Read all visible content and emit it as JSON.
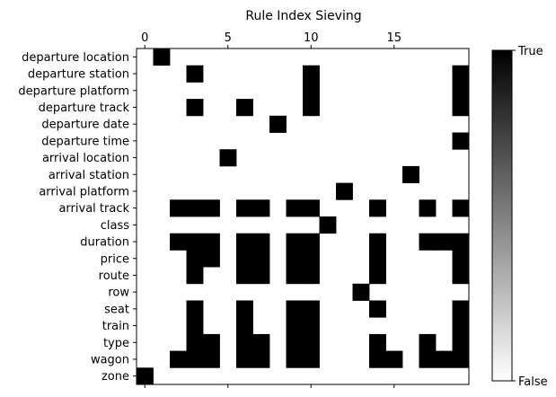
{
  "chart_data": {
    "type": "heatmap",
    "title": "Rule Index Sieving",
    "x_ticks": [
      0,
      5,
      10,
      15
    ],
    "x_range": [
      0,
      19
    ],
    "rows": [
      "departure location",
      "departure station",
      "departure platform",
      "departure track",
      "departure date",
      "departure time",
      "arrival location",
      "arrival station",
      "arrival platform",
      "arrival track",
      "class",
      "duration",
      "price",
      "route",
      "row",
      "seat",
      "train",
      "type",
      "wagon",
      "zone"
    ],
    "cells": [
      [
        0,
        1,
        0,
        0,
        0,
        0,
        0,
        0,
        0,
        0,
        0,
        0,
        0,
        0,
        0,
        0,
        0,
        0,
        0,
        0
      ],
      [
        0,
        0,
        0,
        1,
        0,
        0,
        0,
        0,
        0,
        0,
        1,
        0,
        0,
        0,
        0,
        0,
        0,
        0,
        0,
        1
      ],
      [
        0,
        0,
        0,
        0,
        0,
        0,
        0,
        0,
        0,
        0,
        1,
        0,
        0,
        0,
        0,
        0,
        0,
        0,
        0,
        1
      ],
      [
        0,
        0,
        0,
        1,
        0,
        0,
        1,
        0,
        0,
        0,
        1,
        0,
        0,
        0,
        0,
        0,
        0,
        0,
        0,
        1
      ],
      [
        0,
        0,
        0,
        0,
        0,
        0,
        0,
        0,
        1,
        0,
        0,
        0,
        0,
        0,
        0,
        0,
        0,
        0,
        0,
        0
      ],
      [
        0,
        0,
        0,
        0,
        0,
        0,
        0,
        0,
        0,
        0,
        0,
        0,
        0,
        0,
        0,
        0,
        0,
        0,
        0,
        1
      ],
      [
        0,
        0,
        0,
        0,
        0,
        1,
        0,
        0,
        0,
        0,
        0,
        0,
        0,
        0,
        0,
        0,
        0,
        0,
        0,
        0
      ],
      [
        0,
        0,
        0,
        0,
        0,
        0,
        0,
        0,
        0,
        0,
        0,
        0,
        0,
        0,
        0,
        0,
        1,
        0,
        0,
        0
      ],
      [
        0,
        0,
        0,
        0,
        0,
        0,
        0,
        0,
        0,
        0,
        0,
        0,
        1,
        0,
        0,
        0,
        0,
        0,
        0,
        0
      ],
      [
        0,
        0,
        1,
        1,
        1,
        0,
        1,
        1,
        0,
        1,
        1,
        0,
        0,
        0,
        1,
        0,
        0,
        1,
        0,
        1
      ],
      [
        0,
        0,
        0,
        0,
        0,
        0,
        0,
        0,
        0,
        0,
        0,
        1,
        0,
        0,
        0,
        0,
        0,
        0,
        0,
        0
      ],
      [
        0,
        0,
        1,
        1,
        1,
        0,
        1,
        1,
        0,
        1,
        1,
        0,
        0,
        0,
        1,
        0,
        0,
        1,
        1,
        1
      ],
      [
        0,
        0,
        0,
        1,
        1,
        0,
        1,
        1,
        0,
        1,
        1,
        0,
        0,
        0,
        1,
        0,
        0,
        0,
        0,
        1
      ],
      [
        0,
        0,
        0,
        1,
        0,
        0,
        1,
        1,
        0,
        1,
        1,
        0,
        0,
        0,
        1,
        0,
        0,
        0,
        0,
        1
      ],
      [
        0,
        0,
        0,
        0,
        0,
        0,
        0,
        0,
        0,
        0,
        0,
        0,
        0,
        1,
        0,
        0,
        0,
        0,
        0,
        0
      ],
      [
        0,
        0,
        0,
        1,
        0,
        0,
        1,
        0,
        0,
        1,
        1,
        0,
        0,
        0,
        1,
        0,
        0,
        0,
        0,
        1
      ],
      [
        0,
        0,
        0,
        1,
        0,
        0,
        1,
        0,
        0,
        1,
        1,
        0,
        0,
        0,
        0,
        0,
        0,
        0,
        0,
        1
      ],
      [
        0,
        0,
        0,
        1,
        1,
        0,
        1,
        1,
        0,
        1,
        1,
        0,
        0,
        0,
        1,
        0,
        0,
        1,
        0,
        1
      ],
      [
        0,
        0,
        1,
        1,
        1,
        0,
        1,
        1,
        0,
        1,
        1,
        0,
        0,
        0,
        1,
        1,
        0,
        1,
        1,
        1
      ],
      [
        1,
        0,
        0,
        0,
        0,
        0,
        0,
        0,
        0,
        0,
        0,
        0,
        0,
        0,
        0,
        0,
        0,
        0,
        0,
        0
      ]
    ],
    "colorbar": {
      "top_label": "True",
      "bottom_label": "False",
      "high_color": "#000000",
      "low_color": "#ffffff"
    },
    "grid": false,
    "x_axis_position": "top-and-bottom"
  }
}
